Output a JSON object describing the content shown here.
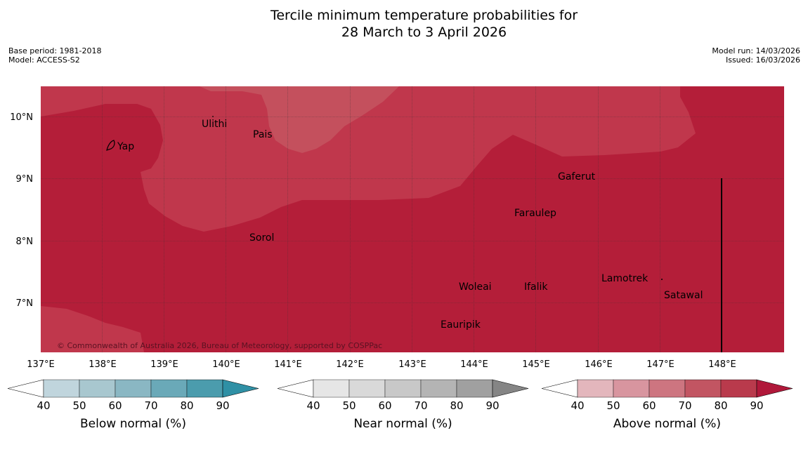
{
  "header": {
    "title_line1": "Tercile minimum temperature probabilities for",
    "title_line2": "28 March to 3 April 2026",
    "base_period": "Base period: 1981-2018",
    "model": "Model: ACCESS-S2",
    "model_run": "Model run: 14/03/2026",
    "issued": "Issued: 16/03/2026"
  },
  "map": {
    "lon_labels": [
      "137°E",
      "138°E",
      "139°E",
      "140°E",
      "141°E",
      "142°E",
      "143°E",
      "144°E",
      "145°E",
      "146°E",
      "147°E",
      "148°E"
    ],
    "lat_labels": [
      "10°N",
      "9°N",
      "8°N",
      "7°N"
    ],
    "places": [
      "Ulithi",
      "Pais",
      "Yap",
      "Gaferut",
      "Faraulep",
      "Sorol",
      "Lamotrek",
      "Woleai",
      "Ifalik",
      "Satawal",
      "Eauripik"
    ],
    "copyright": "© Commonwealth of Australia 2026, Bureau of Meteorology, supported by COSPPac",
    "colors": {
      "above_80_90": "#b41e39",
      "above_70_80": "#c0374c",
      "above_60_70": "#c4505d"
    }
  },
  "colorbars": [
    {
      "label": "Below normal (%)",
      "ticks": [
        "40",
        "50",
        "60",
        "70",
        "80",
        "90"
      ],
      "colors": [
        "#c0d5dd",
        "#a8c7cf",
        "#8ab7c3",
        "#6aa9b8",
        "#4b9cad",
        "#2f90a5"
      ]
    },
    {
      "label": "Near normal (%)",
      "ticks": [
        "40",
        "50",
        "60",
        "70",
        "80",
        "90"
      ],
      "colors": [
        "#e6e6e6",
        "#d9d9d9",
        "#c8c8c8",
        "#b4b4b4",
        "#a0a0a0",
        "#858585"
      ]
    },
    {
      "label": "Above normal (%)",
      "ticks": [
        "40",
        "50",
        "60",
        "70",
        "80",
        "90"
      ],
      "colors": [
        "#e3b6bc",
        "#d8959f",
        "#cd7580",
        "#c25562",
        "#b93a4c",
        "#b0183a"
      ]
    }
  ]
}
